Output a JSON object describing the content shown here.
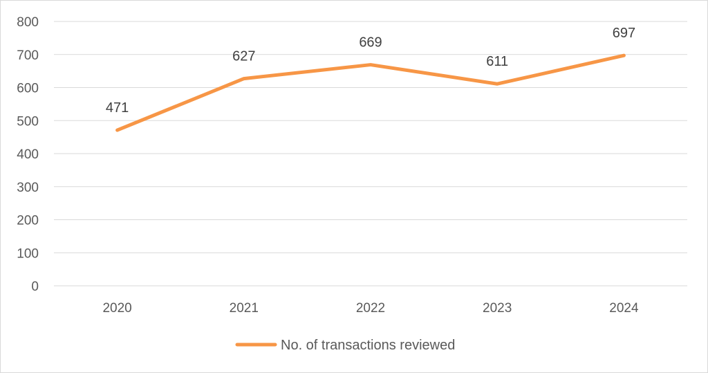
{
  "chart_data": {
    "type": "line",
    "categories": [
      "2020",
      "2021",
      "2022",
      "2023",
      "2024"
    ],
    "series": [
      {
        "name": "No. of transactions reviewed",
        "values": [
          471,
          627,
          669,
          611,
          697
        ],
        "color": "#f79646"
      }
    ],
    "data_labels": [
      "471",
      "627",
      "669",
      "611",
      "697"
    ],
    "ylim": [
      0,
      800
    ],
    "yticks": [
      "0",
      "100",
      "200",
      "300",
      "400",
      "500",
      "600",
      "700",
      "800"
    ],
    "grid": true,
    "gridline_color": "#d9d9d9",
    "legend_position": "bottom-center",
    "title": "",
    "xlabel": "",
    "ylabel": ""
  }
}
